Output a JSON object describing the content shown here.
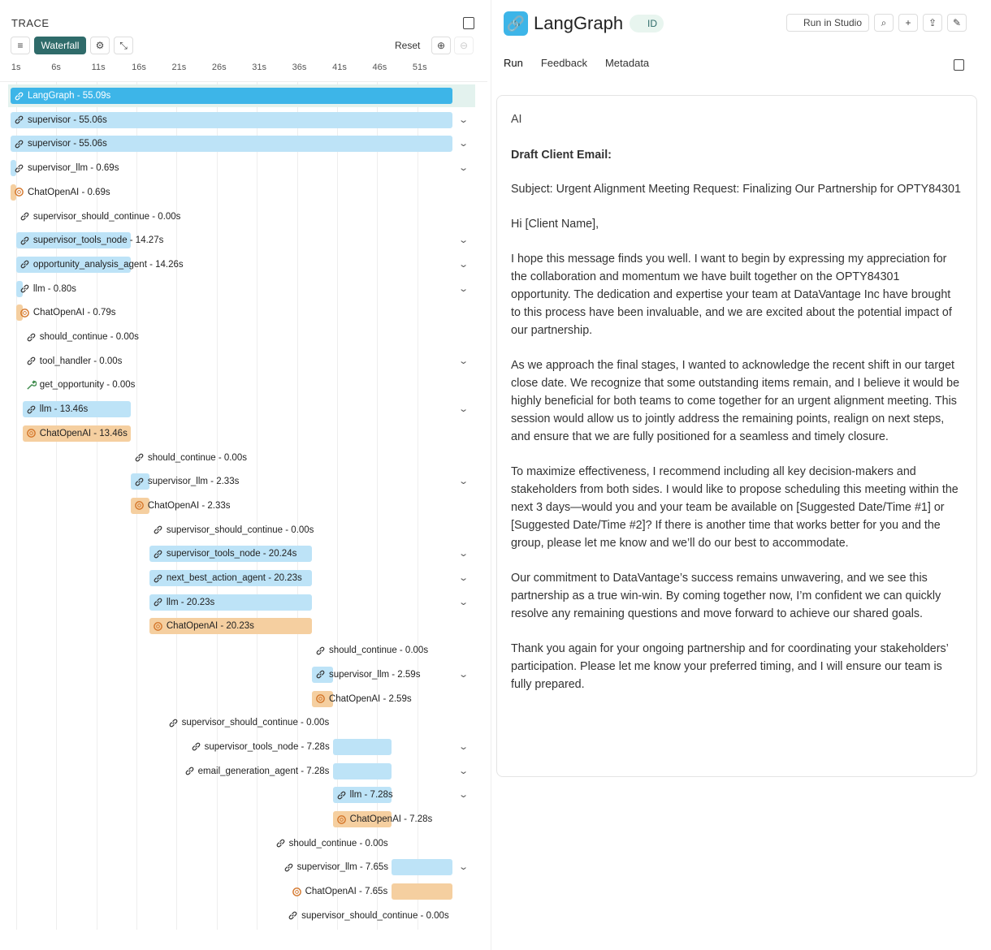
{
  "trace": {
    "title": "TRACE",
    "view_button": "Waterfall",
    "reset_button": "Reset",
    "axis": {
      "ticks": [
        {
          "value": 1,
          "label": "1s"
        },
        {
          "value": 6,
          "label": "6s"
        },
        {
          "value": 11,
          "label": "11s"
        },
        {
          "value": 16,
          "label": "16s"
        },
        {
          "value": 21,
          "label": "21s"
        },
        {
          "value": 26,
          "label": "26s"
        },
        {
          "value": 31,
          "label": "31s"
        },
        {
          "value": 36,
          "label": "36s"
        },
        {
          "value": 41,
          "label": "41s"
        },
        {
          "value": 46,
          "label": "46s"
        },
        {
          "value": 51,
          "label": "51s"
        }
      ]
    },
    "rows": [
      {
        "label": "LangGraph - 55.09s",
        "icon": "link",
        "start": 0.3,
        "duration": 55.09,
        "expandable": false,
        "root": true
      },
      {
        "label": "supervisor - 55.06s",
        "icon": "link",
        "start": 0.3,
        "duration": 55.06,
        "expandable": true
      },
      {
        "label": "supervisor - 55.06s",
        "icon": "link",
        "start": 0.3,
        "duration": 55.06,
        "expandable": true
      },
      {
        "label": "supervisor_llm - 0.69s",
        "icon": "link",
        "start": 0.3,
        "duration": 0.69,
        "expandable": true
      },
      {
        "label": "ChatOpenAI - 0.69s",
        "icon": "openai",
        "start": 0.3,
        "duration": 0.69,
        "expandable": false
      },
      {
        "label": "supervisor_should_continue - 0.00s",
        "icon": "link",
        "start": 1.0,
        "duration": 0,
        "expandable": false
      },
      {
        "label": "supervisor_tools_node - 14.27s",
        "icon": "link",
        "start": 1.0,
        "duration": 14.27,
        "expandable": true
      },
      {
        "label": "opportunity_analysis_agent - 14.26s",
        "icon": "link",
        "start": 1.0,
        "duration": 14.26,
        "expandable": true
      },
      {
        "label": "llm - 0.80s",
        "icon": "link",
        "start": 1.0,
        "duration": 0.8,
        "expandable": true
      },
      {
        "label": "ChatOpenAI - 0.79s",
        "icon": "openai",
        "start": 1.0,
        "duration": 0.79,
        "expandable": false
      },
      {
        "label": "should_continue - 0.00s",
        "icon": "link",
        "start": 1.8,
        "duration": 0,
        "expandable": false
      },
      {
        "label": "tool_handler - 0.00s",
        "icon": "link",
        "start": 1.8,
        "duration": 0,
        "expandable": true
      },
      {
        "label": "get_opportunity - 0.00s",
        "icon": "tool",
        "start": 1.8,
        "duration": 0,
        "expandable": false
      },
      {
        "label": "llm - 13.46s",
        "icon": "link",
        "start": 1.8,
        "duration": 13.46,
        "expandable": true
      },
      {
        "label": "ChatOpenAI - 13.46s",
        "icon": "openai",
        "start": 1.8,
        "duration": 13.46,
        "expandable": false
      },
      {
        "label": "should_continue - 0.00s",
        "icon": "link",
        "start": 15.27,
        "duration": 0,
        "expandable": false
      },
      {
        "label": "supervisor_llm - 2.33s",
        "icon": "link",
        "start": 15.27,
        "duration": 2.33,
        "expandable": true
      },
      {
        "label": "ChatOpenAI - 2.33s",
        "icon": "openai",
        "start": 15.27,
        "duration": 2.33,
        "expandable": false
      },
      {
        "label": "supervisor_should_continue - 0.00s",
        "icon": "link",
        "start": 17.6,
        "duration": 0,
        "expandable": false
      },
      {
        "label": "supervisor_tools_node - 20.24s",
        "icon": "link",
        "start": 17.6,
        "duration": 20.24,
        "expandable": true
      },
      {
        "label": "next_best_action_agent - 20.23s",
        "icon": "link",
        "start": 17.6,
        "duration": 20.23,
        "expandable": true
      },
      {
        "label": "llm - 20.23s",
        "icon": "link",
        "start": 17.6,
        "duration": 20.23,
        "expandable": true
      },
      {
        "label": "ChatOpenAI - 20.23s",
        "icon": "openai",
        "start": 17.6,
        "duration": 20.23,
        "expandable": false
      },
      {
        "label": "should_continue - 0.00s",
        "icon": "link",
        "start": 37.85,
        "duration": 0,
        "expandable": false
      },
      {
        "label": "supervisor_llm - 2.59s",
        "icon": "link",
        "start": 37.85,
        "duration": 2.59,
        "expandable": true
      },
      {
        "label": "ChatOpenAI - 2.59s",
        "icon": "openai",
        "start": 37.85,
        "duration": 2.59,
        "expandable": false
      },
      {
        "label": "supervisor_should_continue - 0.00s",
        "icon": "link",
        "start": 40.45,
        "duration": 0,
        "expandable": false
      },
      {
        "label": "supervisor_tools_node - 7.28s",
        "icon": "link",
        "start": 40.45,
        "duration": 7.28,
        "expandable": true
      },
      {
        "label": "email_generation_agent - 7.28s",
        "icon": "link",
        "start": 40.45,
        "duration": 7.28,
        "expandable": true
      },
      {
        "label": "llm - 7.28s",
        "icon": "link",
        "start": 40.45,
        "duration": 7.28,
        "expandable": true
      },
      {
        "label": "ChatOpenAI - 7.28s",
        "icon": "openai",
        "start": 40.45,
        "duration": 7.28,
        "expandable": false
      },
      {
        "label": "should_continue - 0.00s",
        "icon": "link",
        "start": 47.73,
        "duration": 0,
        "expandable": false
      },
      {
        "label": "supervisor_llm - 7.65s",
        "icon": "link",
        "start": 47.73,
        "duration": 7.65,
        "expandable": true
      },
      {
        "label": "ChatOpenAI - 7.65s",
        "icon": "openai",
        "start": 47.73,
        "duration": 7.65,
        "expandable": false
      },
      {
        "label": "supervisor_should_continue - 0.00s",
        "icon": "link",
        "start": 55.38,
        "duration": 0,
        "expandable": false
      }
    ]
  },
  "detail": {
    "title": "LangGraph",
    "id_badge": "ID",
    "studio_button": "Run in Studio",
    "tabs": [
      "Run",
      "Feedback",
      "Metadata"
    ],
    "role": "AI",
    "heading": "Draft Client Email:",
    "paragraphs": [
      "Subject: Urgent Alignment Meeting Request: Finalizing Our Partnership for OPTY84301",
      "Hi [Client Name],",
      "I hope this message finds you well. I want to begin by expressing my appreciation for the collaboration and momentum we have built together on the OPTY84301 opportunity. The dedication and expertise your team at DataVantage Inc have brought to this process have been invaluable, and we are excited about the potential impact of our partnership.",
      "As we approach the final stages, I wanted to acknowledge the recent shift in our target close date. We recognize that some outstanding items remain, and I believe it would be highly beneficial for both teams to come together for an urgent alignment meeting. This session would allow us to jointly address the remaining points, realign on next steps, and ensure that we are fully positioned for a seamless and timely closure.",
      "To maximize effectiveness, I recommend including all key decision-makers and stakeholders from both sides. I would like to propose scheduling this meeting within the next 3 days—would you and your team be available on [Suggested Date/Time #1] or [Suggested Date/Time #2]? If there is another time that works better for you and the group, please let me know and we’ll do our best to accommodate.",
      "Our commitment to DataVantage’s success remains unwavering, and we see this partnership as a true win-win. By coming together now, I’m confident we can quickly resolve any remaining questions and move forward to achieve our shared goals.",
      "Thank you again for your ongoing partnership and for coordinating your stakeholders’ participation. Please let me know your preferred timing, and I will ensure our team is fully prepared."
    ]
  }
}
